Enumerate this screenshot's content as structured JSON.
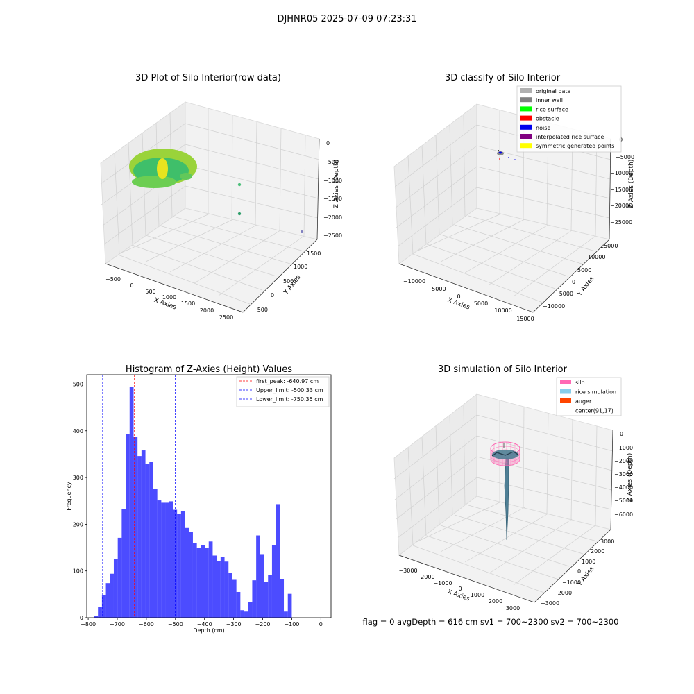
{
  "figure": {
    "suptitle": "DJHNR05 2025-07-09 07:23:31",
    "status_line": "flag = 0     avgDepth = 616 cm  sv1 = 700~2300  sv2 = 700~2300"
  },
  "panels": {
    "raw": {
      "title": "3D Plot of Silo Interior(row data)",
      "xlabel": "X Axies",
      "ylabel": "Y Axies",
      "zlabel": "Z Axies (Depth)",
      "xticks": [
        "−500",
        "0",
        "500",
        "1000",
        "1500",
        "2000",
        "2500"
      ],
      "yticks": [
        "−500",
        "0",
        "500",
        "1000",
        "1500"
      ],
      "zticks": [
        "0",
        "−500",
        "−1000",
        "−1500",
        "−2000",
        "−2500"
      ]
    },
    "classify": {
      "title": "3D classify of Silo Interior",
      "xlabel": "X Axies",
      "ylabel": "Y Axies",
      "zlabel": "Z Axies (Depth)",
      "xticks": [
        "−10000",
        "−5000",
        "0",
        "5000",
        "10000",
        "15000"
      ],
      "yticks": [
        "−10000",
        "−5000",
        "0",
        "5000",
        "10000",
        "15000"
      ],
      "zticks": [
        "0",
        "−5000",
        "−10000",
        "−15000",
        "−20000",
        "−25000"
      ],
      "legend": [
        {
          "label": "original data",
          "color": "#b0b0b0"
        },
        {
          "label": "inner wall",
          "color": "#808080"
        },
        {
          "label": "rice surface",
          "color": "#00ff00"
        },
        {
          "label": "obstacle",
          "color": "#ff0000"
        },
        {
          "label": "noise",
          "color": "#0000ee"
        },
        {
          "label": "interpolated rice surface",
          "color": "#800080"
        },
        {
          "label": "symmetric generated points",
          "color": "#ffff00"
        }
      ]
    },
    "simulation": {
      "title": "3D simulation of Silo Interior",
      "xlabel": "X Axies",
      "ylabel": "Y Axies",
      "zlabel": "Z Axies (Depth)",
      "xticks": [
        "−3000",
        "−2000",
        "−1000",
        "0",
        "1000",
        "2000",
        "3000"
      ],
      "yticks": [
        "−3000",
        "−2000",
        "−1000",
        "0",
        "1000",
        "2000",
        "3000"
      ],
      "zticks": [
        "0",
        "−1000",
        "−2000",
        "−3000",
        "−4000",
        "−5000",
        "−6000"
      ],
      "legend": [
        {
          "label": "silo",
          "color": "#ff69b4"
        },
        {
          "label": "rice simulation",
          "color": "#87ceeb"
        },
        {
          "label": "auger",
          "color": "#ff4500"
        },
        {
          "label": "center(91,17)",
          "color": "#ffffff"
        }
      ]
    }
  },
  "chart_data": {
    "type": "bar",
    "title": "Histogram of Z-Axies (Height) Values",
    "xlabel": "Depth (cm)",
    "ylabel": "Frequency",
    "xlim": [
      -805,
      35
    ],
    "ylim": [
      0,
      520
    ],
    "xticks": [
      -800,
      -700,
      -600,
      -500,
      -400,
      -300,
      -200,
      -100,
      0
    ],
    "yticks": [
      0,
      100,
      200,
      300,
      400,
      500
    ],
    "bin_start": -780,
    "bin_width": 13.6,
    "values": [
      3,
      23,
      49,
      74,
      94,
      126,
      171,
      232,
      393,
      494,
      387,
      346,
      358,
      329,
      333,
      275,
      251,
      246,
      246,
      249,
      231,
      222,
      228,
      192,
      183,
      160,
      150,
      155,
      150,
      163,
      133,
      121,
      130,
      120,
      96,
      81,
      55,
      16,
      13,
      34,
      80,
      176,
      136,
      77,
      92,
      156,
      243,
      82,
      13,
      51
    ],
    "bar_color": "#0000ff",
    "bar_alpha": 0.7,
    "grid": false,
    "legend_position": "top-right",
    "lines": [
      {
        "label": "first_peak: -640.97 cm",
        "x": -640.97,
        "color": "#ff0000"
      },
      {
        "label": "Upper_limit: -500.33 cm",
        "x": -500.33,
        "color": "#0000ff"
      },
      {
        "label": "Lower_limit: -750.35 cm",
        "x": -750.35,
        "color": "#0000ff"
      }
    ]
  }
}
